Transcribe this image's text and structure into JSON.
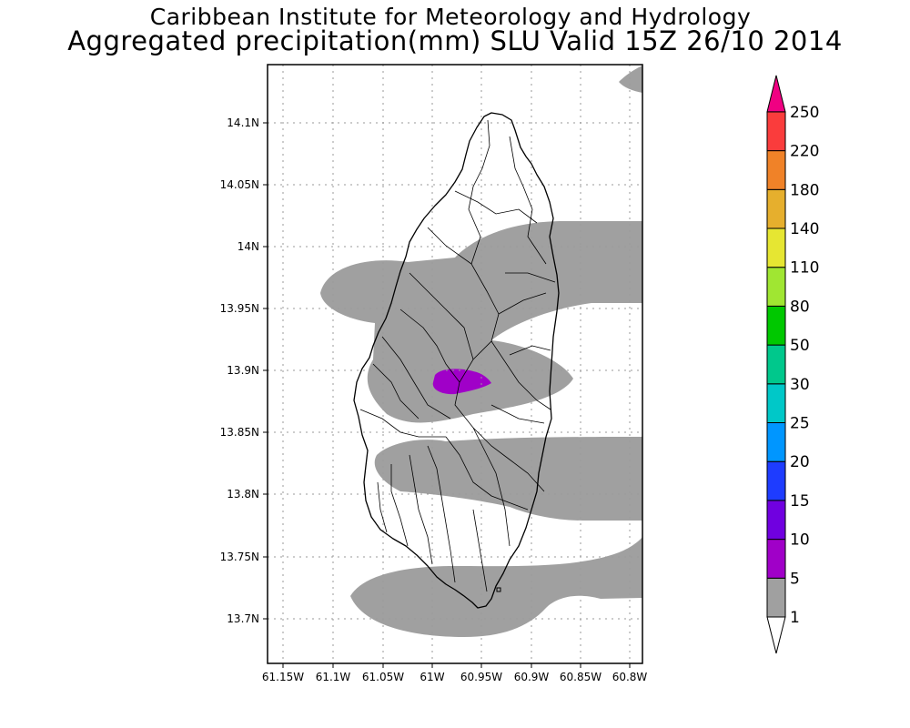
{
  "title_line1": "Caribbean Institute for Meteorology and Hydrology",
  "title_line2": "Aggregated precipitation(mm) SLU Valid 15Z 26/10 2014",
  "x_ticks": [
    "61.15W",
    "61.1W",
    "61.05W",
    "61W",
    "60.95W",
    "60.9W",
    "60.85W",
    "60.8W"
  ],
  "y_ticks": [
    "14.1N",
    "14.05N",
    "14N",
    "13.95N",
    "13.9N",
    "13.85N",
    "13.8N",
    "13.75N",
    "13.7N"
  ],
  "colorbar": {
    "labels": [
      "1",
      "5",
      "10",
      "15",
      "20",
      "25",
      "30",
      "50",
      "80",
      "110",
      "140",
      "180",
      "220",
      "250"
    ],
    "colors": [
      "#ffffff",
      "#a0a0a0",
      "#a000c8",
      "#7000e0",
      "#1e3cff",
      "#0096ff",
      "#00c8c8",
      "#00c88c",
      "#00c800",
      "#a0e632",
      "#e6e632",
      "#e6af2d",
      "#f08228",
      "#fa3c3c",
      "#f00082"
    ]
  },
  "layers": {
    "background": "#ffffff",
    "rain_1_5mm": "#a0a0a0",
    "rain_5_10mm": "#a000c8",
    "coastline": "#000000"
  }
}
